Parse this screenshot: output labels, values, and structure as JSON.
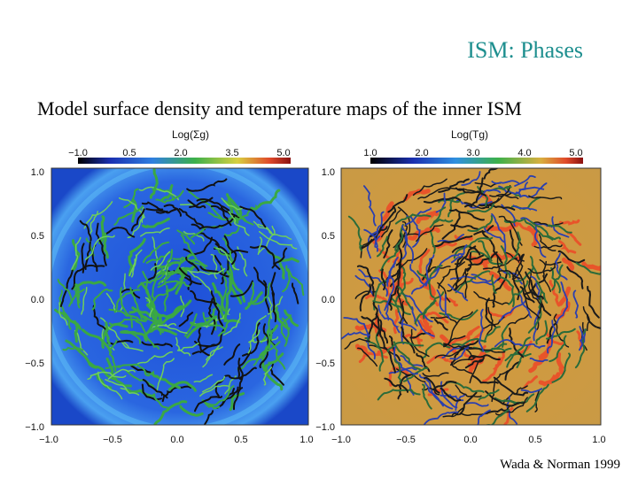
{
  "slide": {
    "title": "ISM: Phases",
    "subtitle": "Model surface density and temperature maps of the inner ISM",
    "credit": "Wada & Norman 1999"
  },
  "left_map": {
    "colorbar_title": "Log(Σg)",
    "colorbar_ticks": [
      "−1.0",
      "0.5",
      "2.0",
      "3.5",
      "5.0"
    ],
    "y_ticks": [
      "1.0",
      "0.5",
      "0.0",
      "−0.5",
      "−1.0"
    ],
    "x_ticks": [
      "−1.0",
      "−0.5",
      "0.0",
      "0.5",
      "1.0"
    ],
    "colors": {
      "background": "#1c4fd0",
      "filament": "#3aa844",
      "core": "#111111"
    }
  },
  "right_map": {
    "colorbar_title": "Log(Tg)",
    "colorbar_ticks": [
      "1.0",
      "2.0",
      "3.0",
      "4.0",
      "5.0"
    ],
    "y_ticks": [
      "1.0",
      "0.5",
      "0.0",
      "−0.5",
      "−1.0"
    ],
    "x_ticks": [
      "−1.0",
      "−0.5",
      "0.0",
      "0.5",
      "1.0"
    ],
    "colors": {
      "background": "#cf9a3a",
      "hot": "#e8542a",
      "cold": "#1a1a1a",
      "warm": "#2a6b3a"
    }
  }
}
